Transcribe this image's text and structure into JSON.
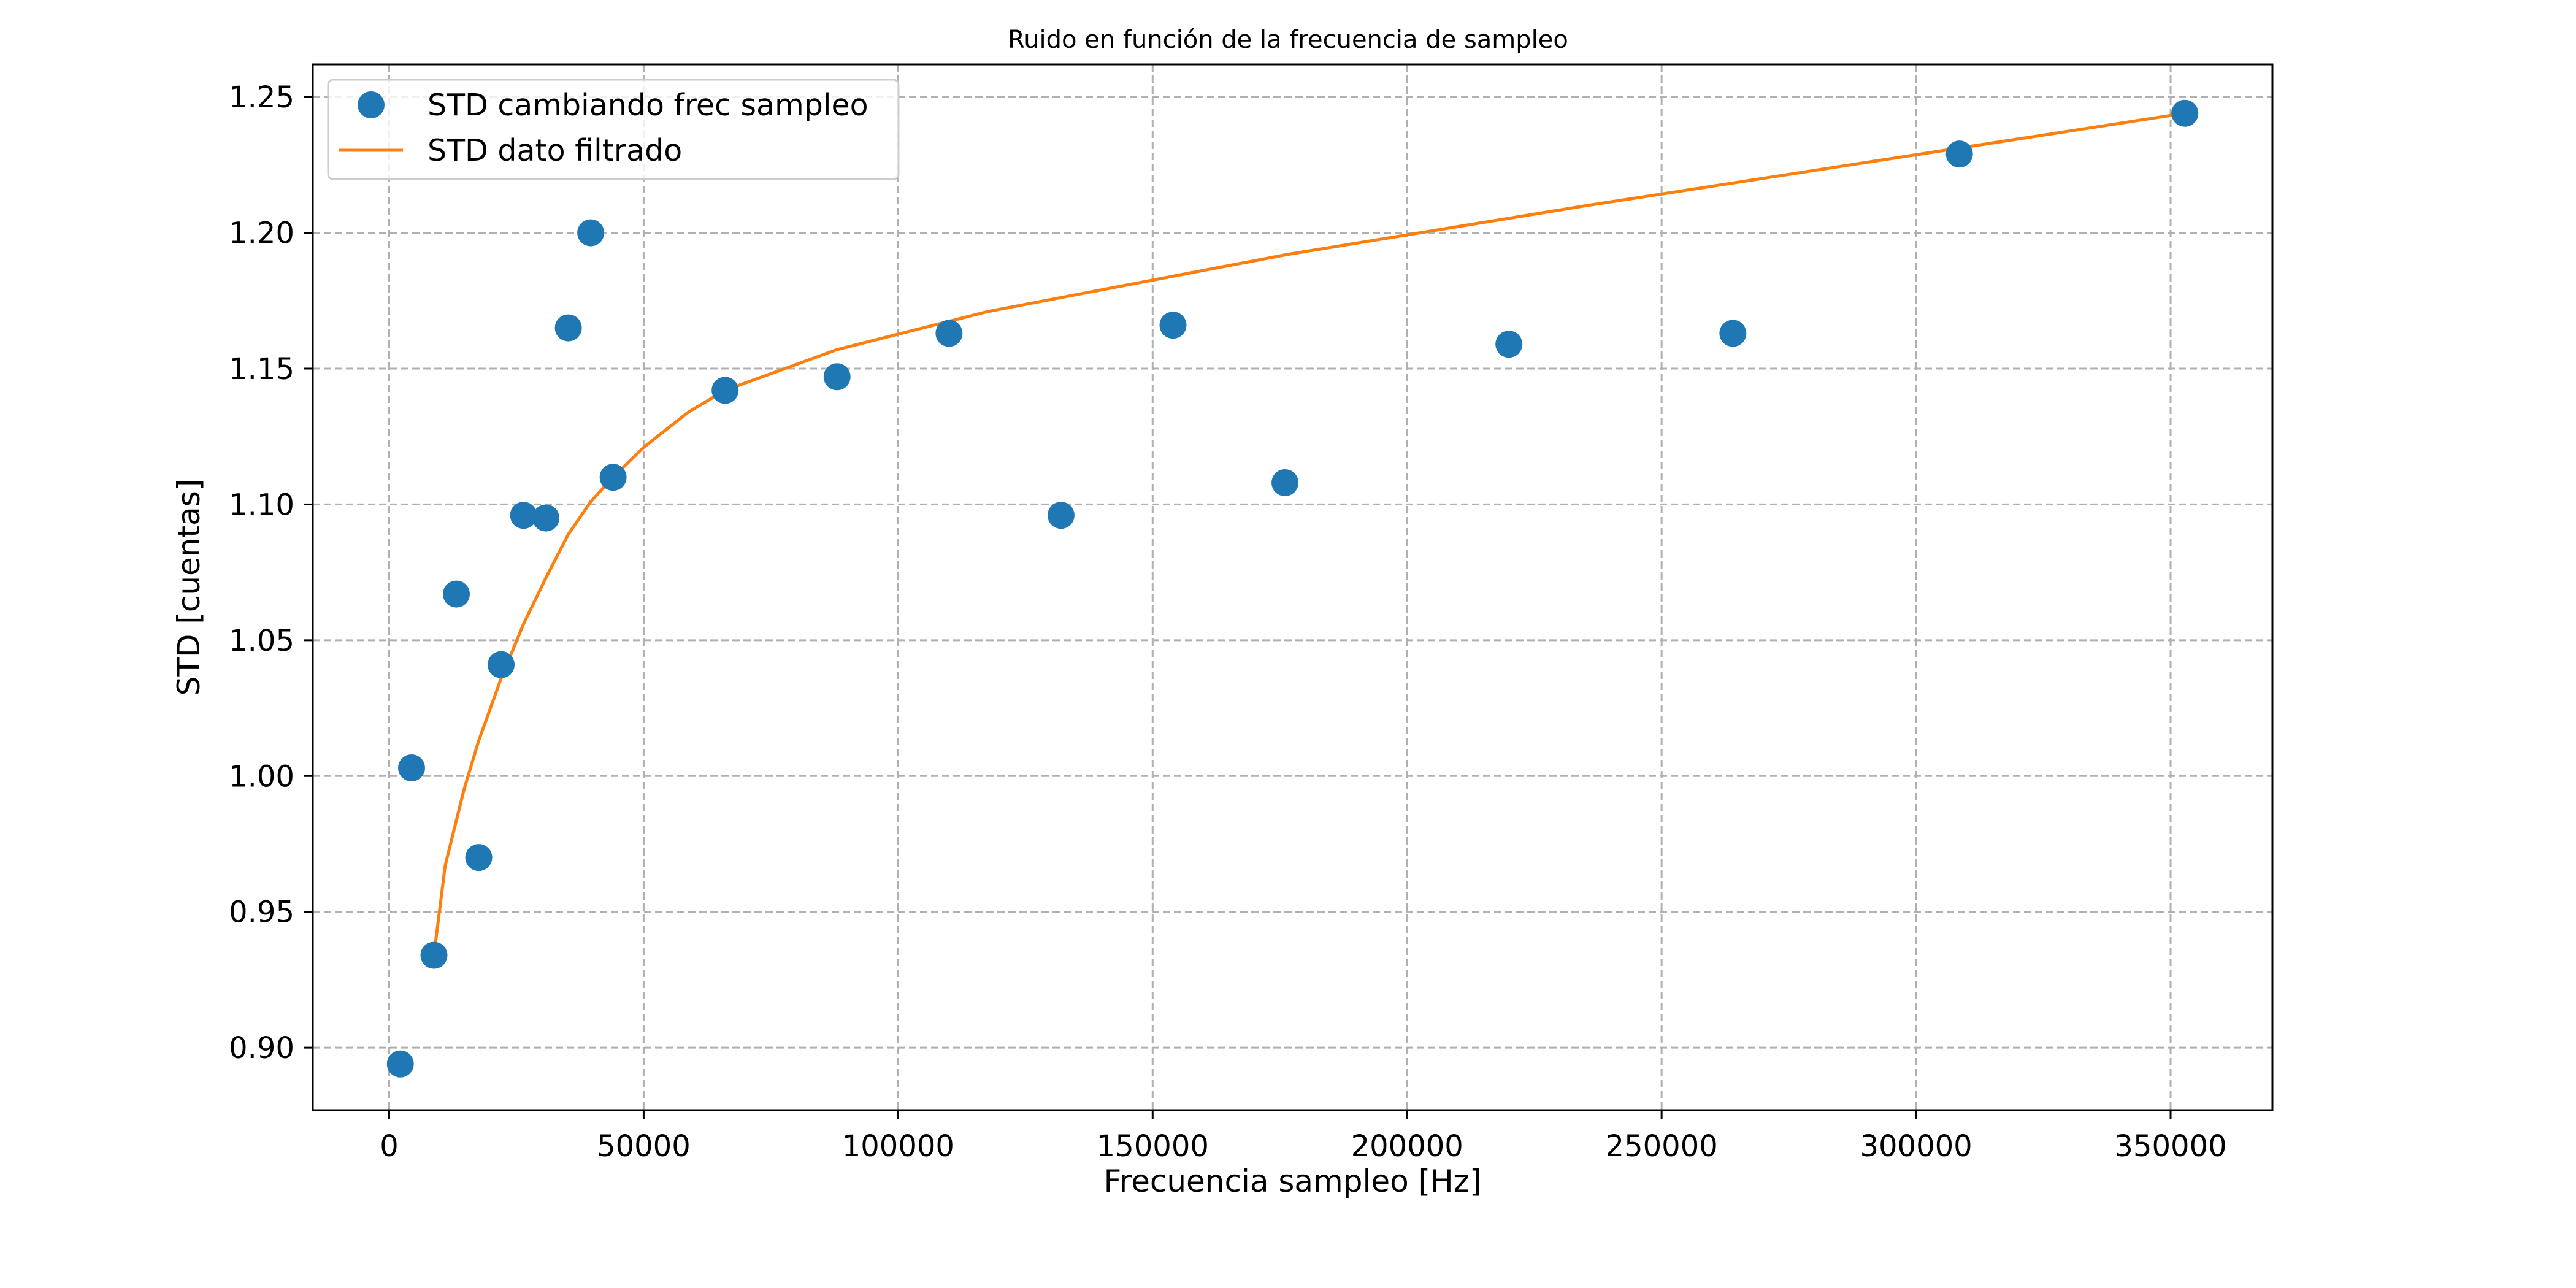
{
  "chart_data": {
    "type": "scatter",
    "title": "Ruido en función de la frecuencia de sampleo",
    "xlabel": "Frecuencia sampleo [Hz]",
    "ylabel": "STD [cuentas]",
    "xlim": [
      -15000,
      370000
    ],
    "ylim": [
      0.877,
      1.262
    ],
    "xticks": [
      0,
      50000,
      100000,
      150000,
      200000,
      250000,
      300000,
      350000
    ],
    "xtick_labels": [
      "0",
      "50000",
      "100000",
      "150000",
      "200000",
      "250000",
      "300000",
      "350000"
    ],
    "yticks": [
      0.9,
      0.95,
      1.0,
      1.05,
      1.1,
      1.15,
      1.2,
      1.25
    ],
    "ytick_labels": [
      "0.90",
      "0.95",
      "1.00",
      "1.05",
      "1.10",
      "1.15",
      "1.20",
      "1.25"
    ],
    "grid": true,
    "legend_position": "top-left",
    "series": [
      {
        "name": "STD cambiando frec sampleo",
        "style": "markers",
        "color": "#1f77b4",
        "points": [
          [
            2200,
            0.894
          ],
          [
            4400,
            1.003
          ],
          [
            8800,
            0.934
          ],
          [
            13200,
            1.067
          ],
          [
            17600,
            0.97
          ],
          [
            22000,
            1.041
          ],
          [
            26400,
            1.096
          ],
          [
            30800,
            1.095
          ],
          [
            35200,
            1.165
          ],
          [
            39600,
            1.2
          ],
          [
            44000,
            1.11
          ],
          [
            66000,
            1.142
          ],
          [
            88000,
            1.147
          ],
          [
            110000,
            1.163
          ],
          [
            132000,
            1.096
          ],
          [
            154000,
            1.166
          ],
          [
            176000,
            1.108
          ],
          [
            220000,
            1.159
          ],
          [
            264000,
            1.163
          ],
          [
            308500,
            1.229
          ],
          [
            352800,
            1.244
          ]
        ]
      },
      {
        "name": "STD dato filtrado",
        "style": "line",
        "color": "#ff7f0e",
        "points": [
          [
            8800,
            0.934
          ],
          [
            11000,
            0.967
          ],
          [
            14700,
            0.995
          ],
          [
            17600,
            1.013
          ],
          [
            22000,
            1.036
          ],
          [
            26400,
            1.056
          ],
          [
            30800,
            1.073
          ],
          [
            35200,
            1.089
          ],
          [
            39600,
            1.101
          ],
          [
            44000,
            1.11
          ],
          [
            50000,
            1.121
          ],
          [
            58800,
            1.134
          ],
          [
            66000,
            1.142
          ],
          [
            88000,
            1.157
          ],
          [
            117600,
            1.171
          ],
          [
            176400,
            1.192
          ],
          [
            235200,
            1.21
          ],
          [
            294000,
            1.227
          ],
          [
            352800,
            1.244
          ]
        ]
      }
    ]
  }
}
